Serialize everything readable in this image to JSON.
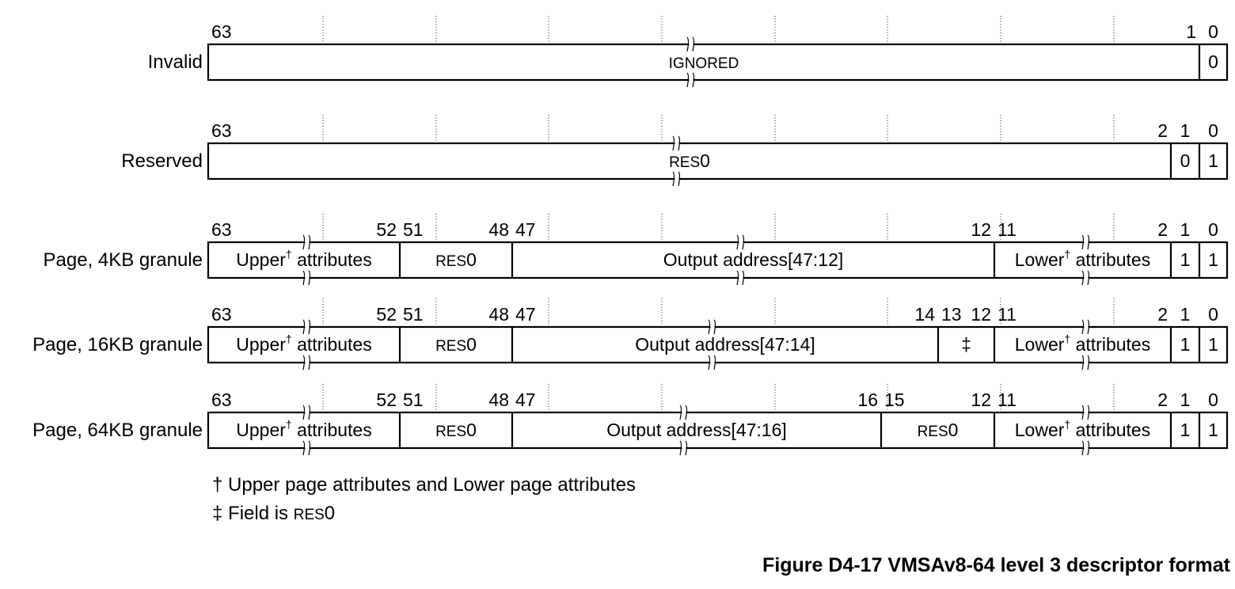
{
  "descriptors": [
    {
      "label": "Invalid",
      "bits": [
        {
          "text": "63",
          "at": 63,
          "side": "left"
        },
        {
          "text": "1",
          "at": 1,
          "side": "right"
        },
        {
          "text": "0",
          "at": 0,
          "side": "center"
        }
      ],
      "fields": [
        {
          "hi": 63,
          "lo": 1,
          "text": "IGNORED",
          "style": "smallcaps",
          "break": true
        },
        {
          "hi": 0,
          "lo": 0,
          "text": "0"
        }
      ]
    },
    {
      "label": "Reserved",
      "bits": [
        {
          "text": "63",
          "at": 63,
          "side": "left"
        },
        {
          "text": "2",
          "at": 2,
          "side": "right"
        },
        {
          "text": "1",
          "at": 1,
          "side": "center"
        },
        {
          "text": "0",
          "at": 0,
          "side": "center"
        }
      ],
      "fields": [
        {
          "hi": 63,
          "lo": 2,
          "text": "RES0",
          "style": "res0",
          "break": true
        },
        {
          "hi": 1,
          "lo": 1,
          "text": "0"
        },
        {
          "hi": 0,
          "lo": 0,
          "text": "1"
        }
      ]
    },
    {
      "label": "Page, 4KB granule",
      "bits": [
        {
          "text": "63",
          "at": 63,
          "side": "left"
        },
        {
          "text": "52",
          "at": 52,
          "side": "right"
        },
        {
          "text": "51",
          "at": 51,
          "side": "left"
        },
        {
          "text": "48",
          "at": 48,
          "side": "right"
        },
        {
          "text": "47",
          "at": 47,
          "side": "left"
        },
        {
          "text": "12",
          "at": 12,
          "side": "right"
        },
        {
          "text": "11",
          "at": 11,
          "side": "left"
        },
        {
          "text": "2",
          "at": 2,
          "side": "right"
        },
        {
          "text": "1",
          "at": 1,
          "side": "center"
        },
        {
          "text": "0",
          "at": 0,
          "side": "center"
        }
      ],
      "fields": [
        {
          "hi": 63,
          "lo": 52,
          "text": "Upper",
          "sup": "†",
          "text2": " attributes",
          "break": true
        },
        {
          "hi": 51,
          "lo": 48,
          "text": "RES0",
          "style": "res0"
        },
        {
          "hi": 47,
          "lo": 12,
          "text": "Output address[47:12]",
          "break": true
        },
        {
          "hi": 11,
          "lo": 2,
          "text": "Lower",
          "sup": "†",
          "text2": " attributes",
          "break": true
        },
        {
          "hi": 1,
          "lo": 1,
          "text": "1"
        },
        {
          "hi": 0,
          "lo": 0,
          "text": "1"
        }
      ]
    },
    {
      "label": "Page, 16KB granule",
      "bits": [
        {
          "text": "63",
          "at": 63,
          "side": "left"
        },
        {
          "text": "52",
          "at": 52,
          "side": "right"
        },
        {
          "text": "51",
          "at": 51,
          "side": "left"
        },
        {
          "text": "48",
          "at": 48,
          "side": "right"
        },
        {
          "text": "47",
          "at": 47,
          "side": "left"
        },
        {
          "text": "14",
          "at": 14,
          "side": "right"
        },
        {
          "text": "13",
          "at": 13,
          "side": "left"
        },
        {
          "text": "12",
          "at": 12,
          "side": "right"
        },
        {
          "text": "11",
          "at": 11,
          "side": "left"
        },
        {
          "text": "2",
          "at": 2,
          "side": "right"
        },
        {
          "text": "1",
          "at": 1,
          "side": "center"
        },
        {
          "text": "0",
          "at": 0,
          "side": "center"
        }
      ],
      "fields": [
        {
          "hi": 63,
          "lo": 52,
          "text": "Upper",
          "sup": "†",
          "text2": " attributes",
          "break": true
        },
        {
          "hi": 51,
          "lo": 48,
          "text": "RES0",
          "style": "res0"
        },
        {
          "hi": 47,
          "lo": 14,
          "text": "Output address[47:14]",
          "break": true
        },
        {
          "hi": 13,
          "lo": 12,
          "text": "‡"
        },
        {
          "hi": 11,
          "lo": 2,
          "text": "Lower",
          "sup": "†",
          "text2": " attributes",
          "break": true
        },
        {
          "hi": 1,
          "lo": 1,
          "text": "1"
        },
        {
          "hi": 0,
          "lo": 0,
          "text": "1"
        }
      ]
    },
    {
      "label": "Page, 64KB granule",
      "bits": [
        {
          "text": "63",
          "at": 63,
          "side": "left"
        },
        {
          "text": "52",
          "at": 52,
          "side": "right"
        },
        {
          "text": "51",
          "at": 51,
          "side": "left"
        },
        {
          "text": "48",
          "at": 48,
          "side": "right"
        },
        {
          "text": "47",
          "at": 47,
          "side": "left"
        },
        {
          "text": "16",
          "at": 16,
          "side": "right"
        },
        {
          "text": "15",
          "at": 15,
          "side": "left"
        },
        {
          "text": "12",
          "at": 12,
          "side": "right"
        },
        {
          "text": "11",
          "at": 11,
          "side": "left"
        },
        {
          "text": "2",
          "at": 2,
          "side": "right"
        },
        {
          "text": "1",
          "at": 1,
          "side": "center"
        },
        {
          "text": "0",
          "at": 0,
          "side": "center"
        }
      ],
      "fields": [
        {
          "hi": 63,
          "lo": 52,
          "text": "Upper",
          "sup": "†",
          "text2": " attributes",
          "break": true
        },
        {
          "hi": 51,
          "lo": 48,
          "text": "RES0",
          "style": "res0"
        },
        {
          "hi": 47,
          "lo": 16,
          "text": "Output address[47:16]",
          "break": true
        },
        {
          "hi": 15,
          "lo": 12,
          "text": "RES0",
          "style": "res0"
        },
        {
          "hi": 11,
          "lo": 2,
          "text": "Lower",
          "sup": "†",
          "text2": " attributes",
          "break": true
        },
        {
          "hi": 1,
          "lo": 1,
          "text": "1"
        },
        {
          "hi": 0,
          "lo": 0,
          "text": "1"
        }
      ]
    }
  ],
  "notes": {
    "dagger": {
      "mark": "†",
      "text": "Upper page attributes and Lower page attributes"
    },
    "ddagger": {
      "mark": "‡",
      "text_before": "Field is ",
      "res0": "RES0"
    }
  },
  "caption": "Figure D4-17 VMSAv8-64 level 3 descriptor format"
}
